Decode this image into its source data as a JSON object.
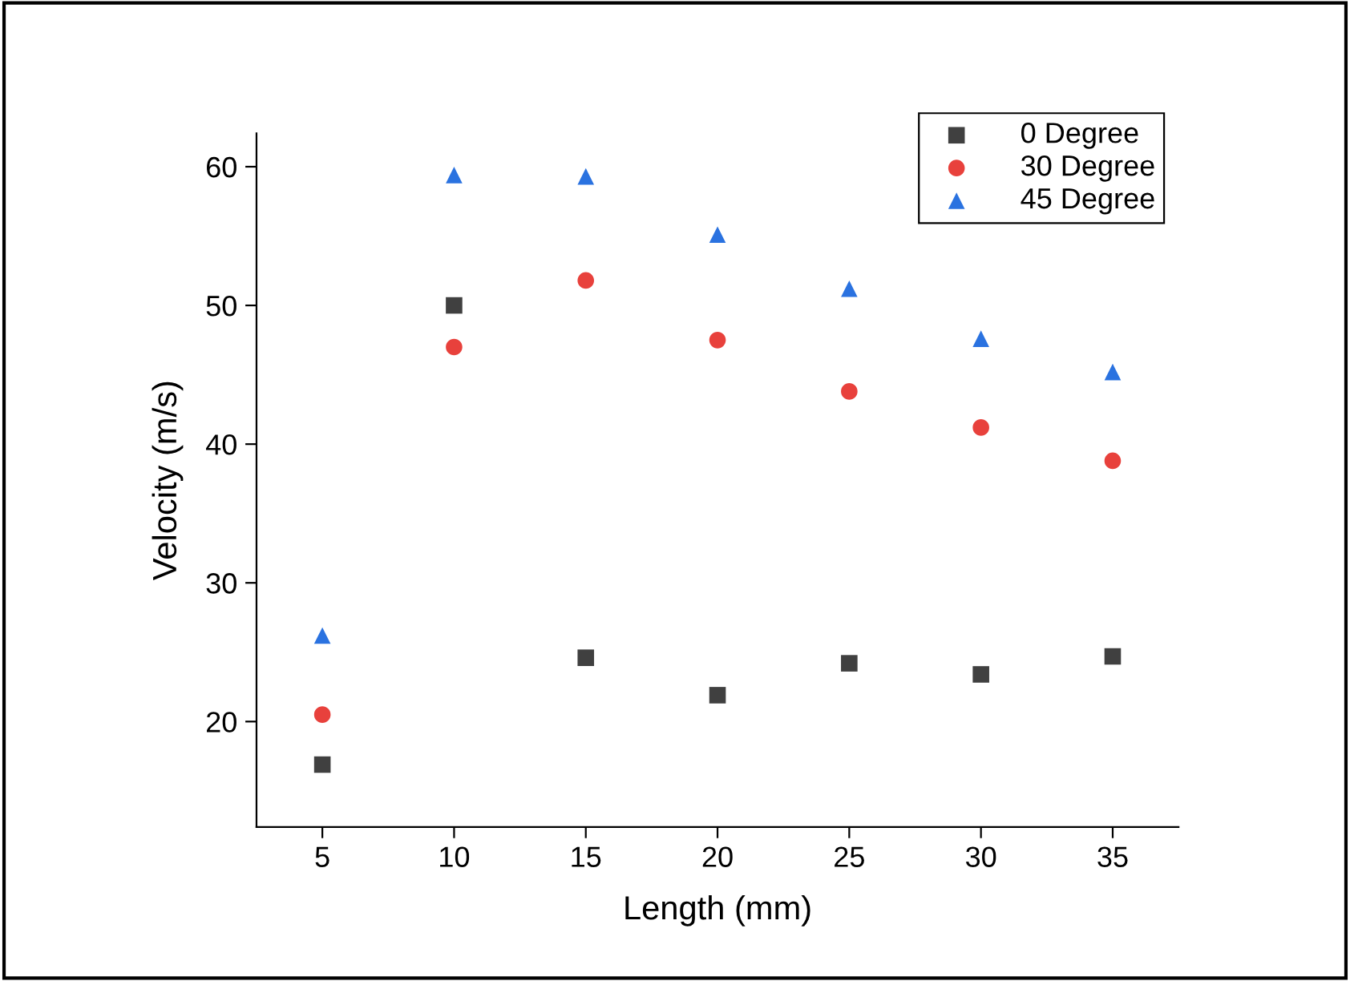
{
  "chart_data": {
    "type": "scatter",
    "xlabel": "Length (mm)",
    "ylabel": "Velocity (m/s)",
    "x": [
      5,
      10,
      15,
      20,
      25,
      30,
      35
    ],
    "series": [
      {
        "name": "0 Degree",
        "color": "#404040",
        "marker": "square",
        "values": [
          16.9,
          50.0,
          24.6,
          21.9,
          24.2,
          23.4,
          24.7
        ]
      },
      {
        "name": "30 Degree",
        "color": "#e8413c",
        "marker": "circle",
        "values": [
          20.5,
          47.0,
          51.8,
          47.5,
          43.8,
          41.2,
          38.8
        ]
      },
      {
        "name": "45 Degree",
        "color": "#2a72e0",
        "marker": "triangle",
        "values": [
          26.2,
          59.4,
          59.3,
          55.1,
          51.2,
          47.6,
          45.2
        ]
      }
    ],
    "xlim": [
      2.5,
      37.5
    ],
    "xticks": [
      5,
      10,
      15,
      20,
      25,
      30,
      35
    ],
    "ylim": [
      12.4,
      62.4
    ],
    "yticks": [
      20,
      30,
      40,
      50,
      60
    ],
    "grid": false,
    "legend": "top right"
  }
}
